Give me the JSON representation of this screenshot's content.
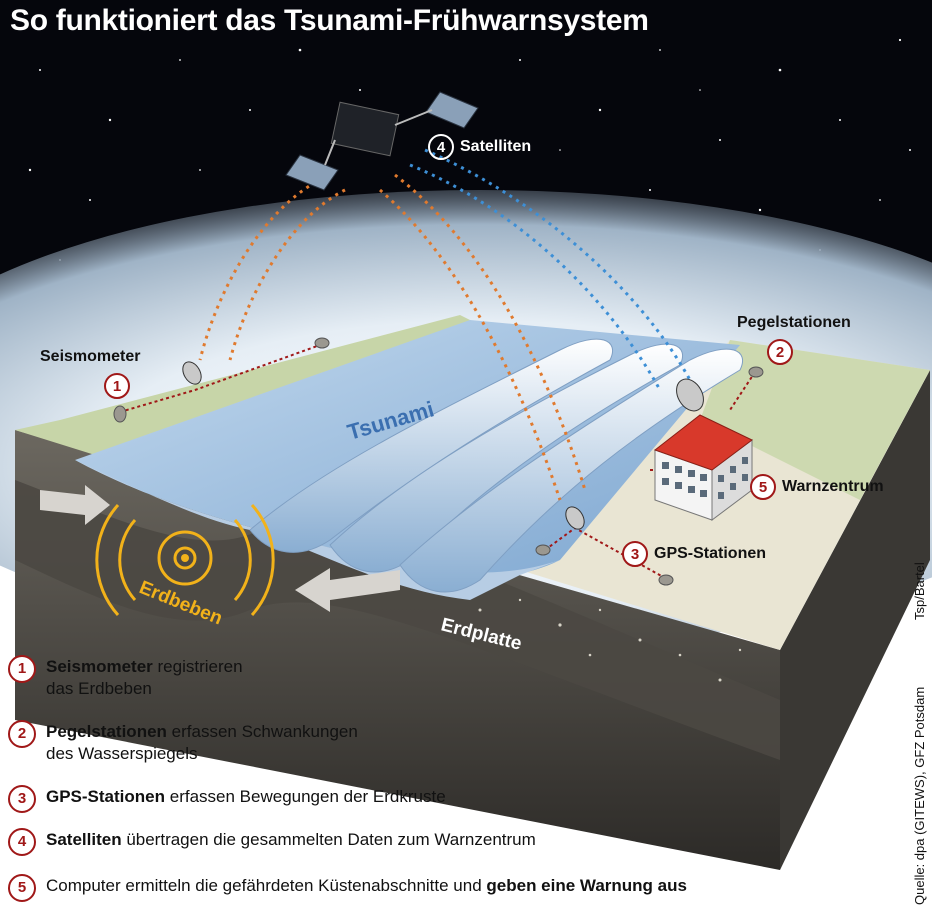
{
  "title": "So funktioniert das Tsunami-Frühwarnsystem",
  "labels": {
    "satellite": "Satelliten",
    "satellite_number": "4",
    "seismometer": "Seismometer",
    "seismometer_number": "1",
    "gauge": "Pegelstationen",
    "gauge_number": "2",
    "warning": "Warnzentrum",
    "warning_number": "5",
    "gps": "GPS-Stationen",
    "gps_number": "3",
    "tsunami": "Tsunami",
    "quake": "Erdbeben",
    "plate": "Erdplatte"
  },
  "legend": [
    {
      "number": "1",
      "bold": "Seismometer",
      "text": " registrieren",
      "line2": "das Erdbeben"
    },
    {
      "number": "2",
      "bold": "Pegelstationen",
      "text": " erfassen Schwankungen",
      "line2": "des Wasserspiegels"
    },
    {
      "number": "3",
      "bold": "GPS-Stationen",
      "text": " erfassen Bewegungen der Erdkruste"
    },
    {
      "number": "4",
      "bold": "Satelliten",
      "text": " übertragen die gesammelten Daten zum Warnzentrum"
    },
    {
      "number": "5",
      "text": "Computer ermitteln die gefährdeten Küstenabschnitte und ",
      "bold_end": "geben eine Warnung aus"
    }
  ],
  "source": "Quelle: dpa (GITEWS), GFZ Potsdam",
  "credit": "Tsp/Bartel",
  "colors": {
    "marker_red": "#a01818",
    "sky": "#05060c",
    "water": "#9fc0e0",
    "signal_orange": "#e07a2e",
    "signal_blue": "#3d8fd6",
    "quake_yellow": "#f2b21a"
  }
}
